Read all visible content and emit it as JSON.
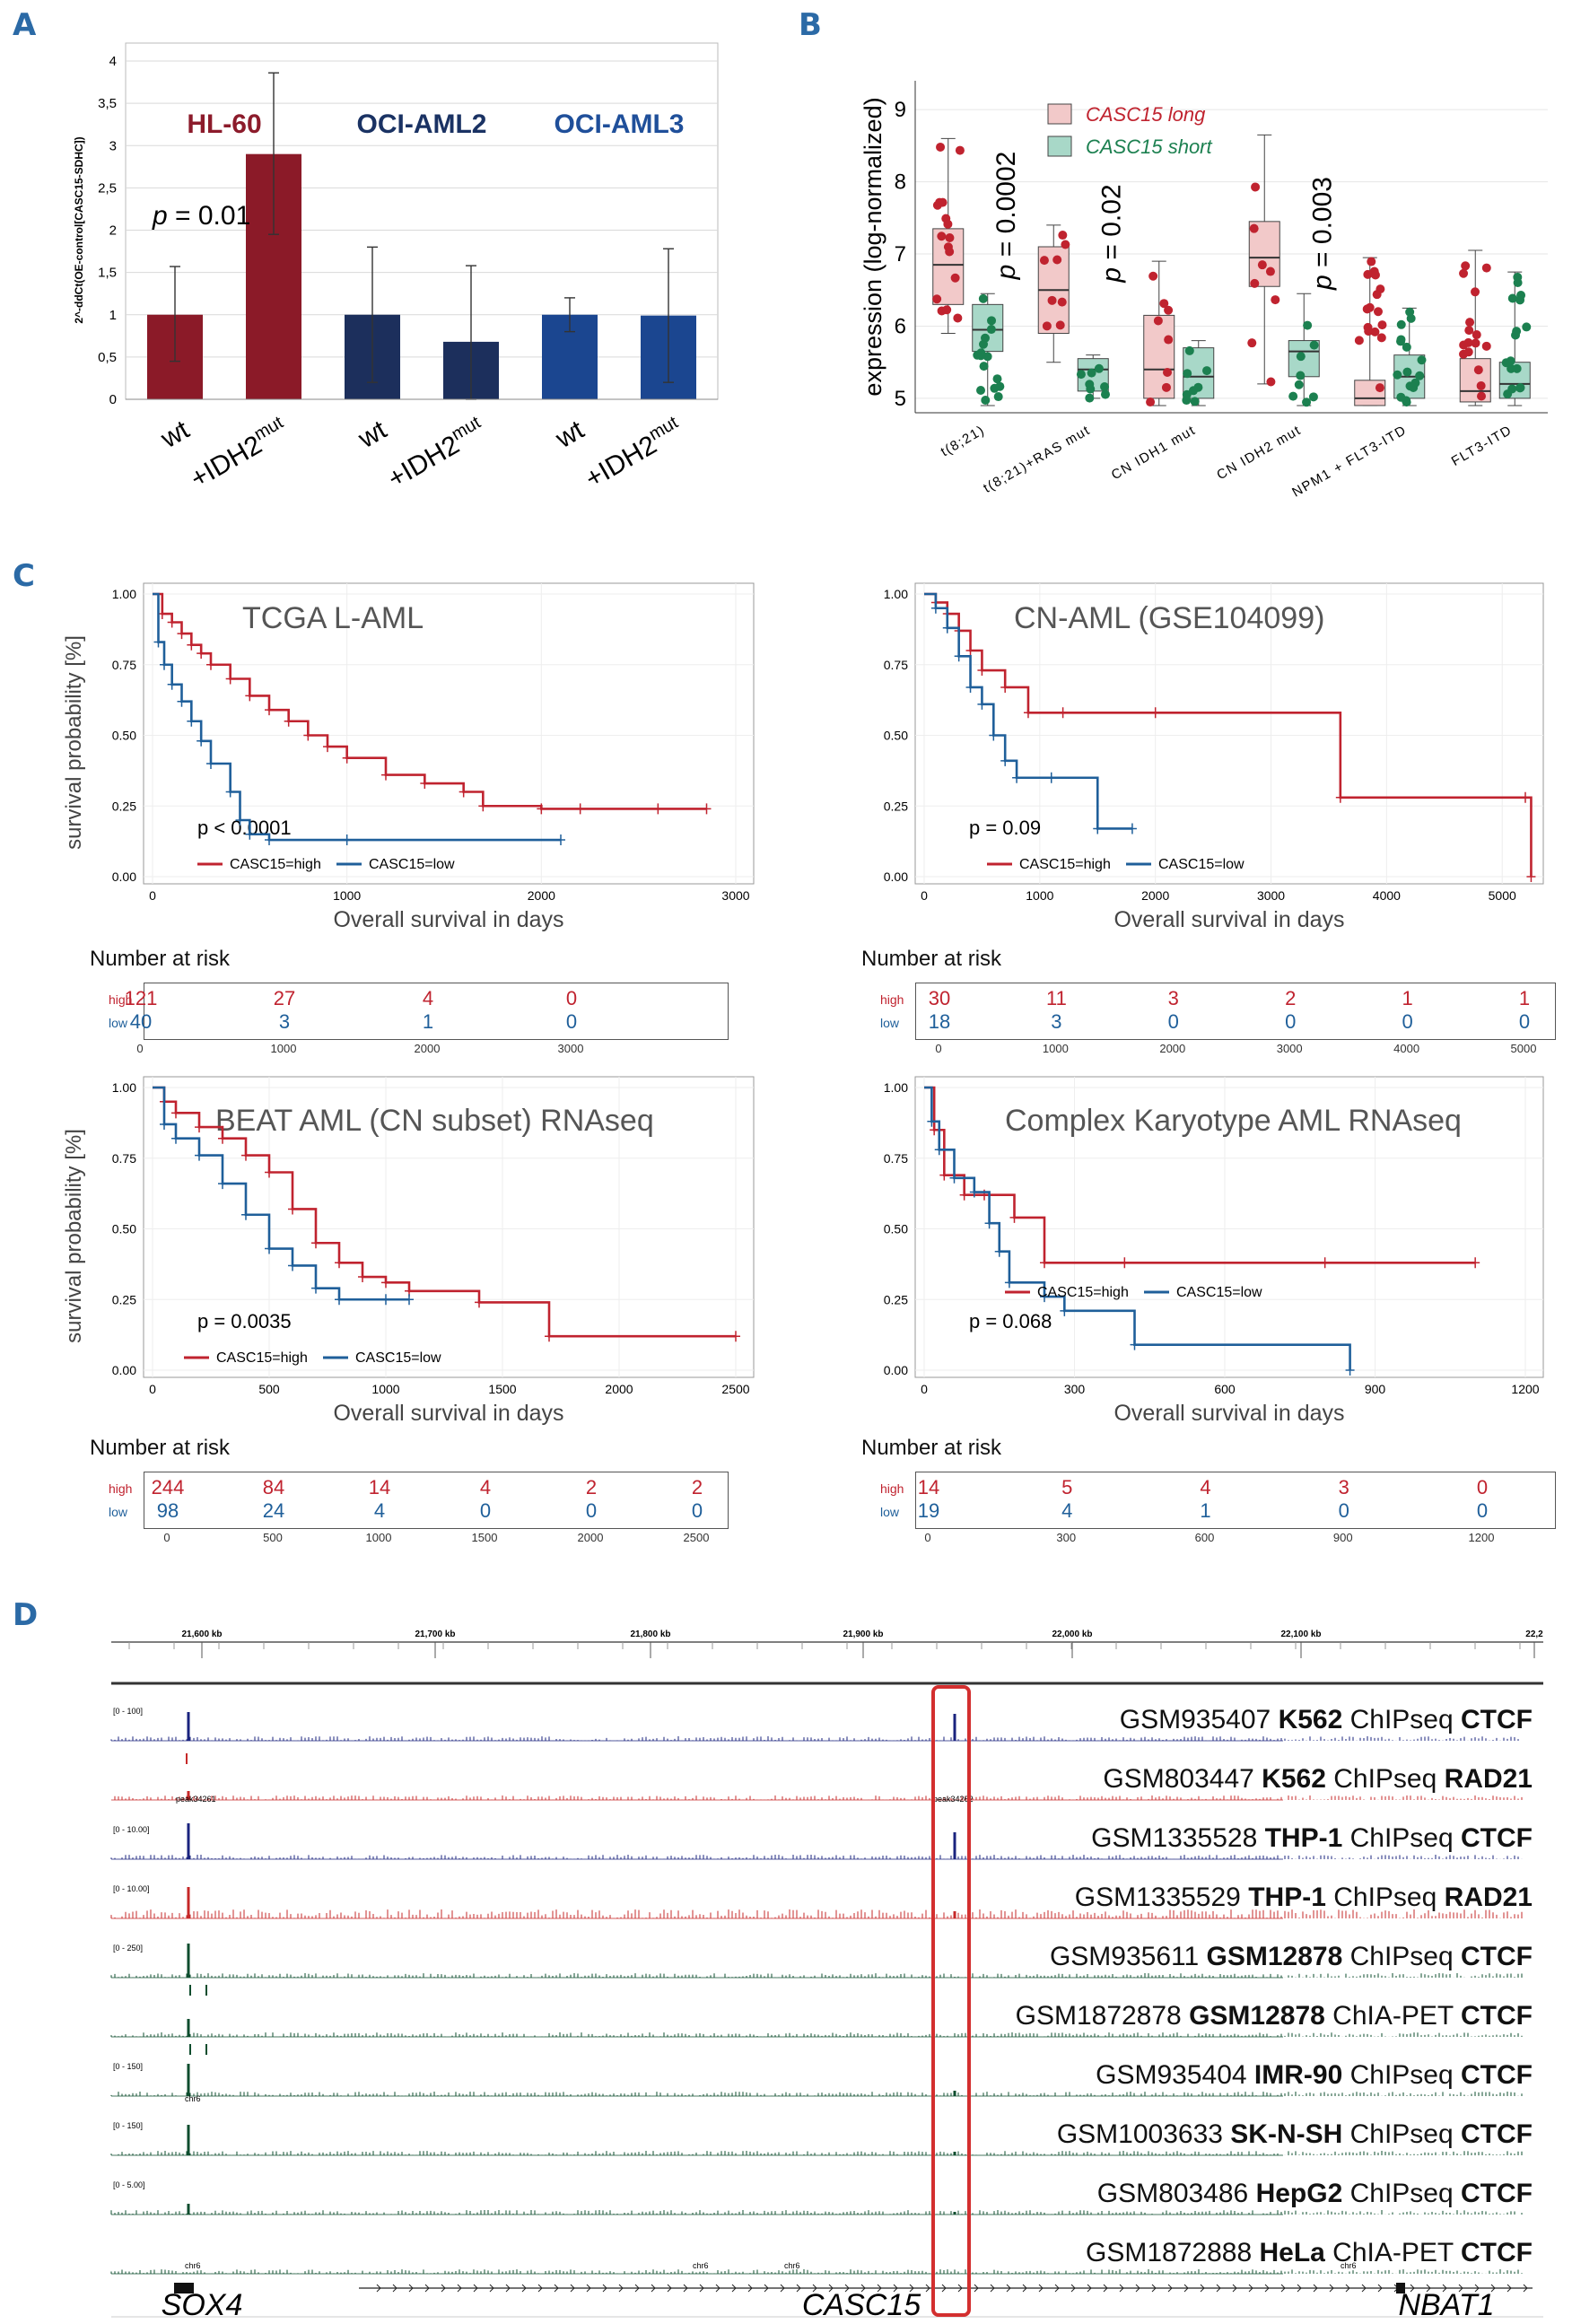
{
  "panels": {
    "A": "A",
    "B": "B",
    "C": "C",
    "D": "D"
  },
  "panelA": {
    "ylabel": "2^-ddCt(OE-control[CASC15-SDHC])",
    "p_text": "p = 0.01",
    "group_labels": [
      "HL-60",
      "OCI-AML2",
      "OCI-AML3"
    ],
    "group_colors": [
      "#8c1b2b",
      "#1a3263",
      "#1f4f9a"
    ],
    "bar_fills": [
      "#8b1a28",
      "#8b1a28",
      "#1c2f5c",
      "#1c2f5c",
      "#1b4690",
      "#1b4690"
    ],
    "categories": [
      "wt",
      "+IDH2mut",
      "wt",
      "+IDH2mut",
      "wt",
      "+IDH2mut"
    ],
    "ticks": [
      "0",
      "0,5",
      "1",
      "1,5",
      "2",
      "2,5",
      "3",
      "3,5",
      "4"
    ]
  },
  "panelB": {
    "ylabel": "expression (log-normalized)",
    "legend": [
      "CASC15 long",
      "CASC15 short"
    ],
    "colors": {
      "long_fill": "#f2c9c9",
      "long_pt": "#c0232f",
      "short_fill": "#a8d8c8",
      "short_pt": "#1c8050"
    },
    "categories": [
      "t(8;21)",
      "t(8;21)+RAS mut",
      "CN IDH1 mut",
      "CN IDH2 mut",
      "NPM1 + FLT3-ITD",
      "FLT3-ITD"
    ],
    "pvals": [
      "p = 0.0002",
      "p = 0.02",
      "",
      "p = 0.003",
      "",
      ""
    ],
    "ticks": [
      "5",
      "6",
      "7",
      "8",
      "9"
    ]
  },
  "panelC": {
    "ylabel": "survival probability [%]",
    "xlabel": "Overall survival in days",
    "risk_title": "Number at risk",
    "risk_labels": [
      "high",
      "low"
    ],
    "colors": {
      "high": "#c0232f",
      "low": "#1f5f9a"
    },
    "plots": [
      {
        "title": "TCGA L-AML",
        "p": "p < 0.0001",
        "legend": [
          "CASC15=high",
          "CASC15=low"
        ],
        "yticks": [
          "0.00",
          "0.25",
          "0.50",
          "0.75",
          "1.00"
        ],
        "xticks": [
          "0",
          "1000",
          "2000",
          "3000"
        ],
        "risk_high": [
          "121",
          "27",
          "4",
          "0"
        ],
        "risk_low": [
          "40",
          "3",
          "1",
          "0"
        ],
        "risk_xticks": [
          "0",
          "1000",
          "2000",
          "3000"
        ]
      },
      {
        "title": "CN-AML (GSE104099)",
        "p": "p = 0.09",
        "legend": [
          "CASC15=high",
          "CASC15=low"
        ],
        "yticks": [
          "0.00",
          "0.25",
          "0.50",
          "0.75",
          "1.00"
        ],
        "xticks": [
          "0",
          "1000",
          "2000",
          "3000",
          "4000",
          "5000"
        ],
        "risk_high": [
          "30",
          "11",
          "3",
          "2",
          "1",
          "1"
        ],
        "risk_low": [
          "18",
          "3",
          "0",
          "0",
          "0",
          "0"
        ],
        "risk_xticks": [
          "0",
          "1000",
          "2000",
          "3000",
          "4000",
          "5000"
        ]
      },
      {
        "title": "BEAT AML (CN subset) RNAseq",
        "p": "p = 0.0035",
        "legend": [
          "CASC15=high",
          "CASC15=low"
        ],
        "yticks": [
          "0.00",
          "0.25",
          "0.50",
          "0.75",
          "1.00"
        ],
        "xticks": [
          "0",
          "500",
          "1000",
          "1500",
          "2000",
          "2500"
        ],
        "risk_high": [
          "244",
          "84",
          "14",
          "4",
          "2",
          "2"
        ],
        "risk_low": [
          "98",
          "24",
          "4",
          "0",
          "0",
          "0"
        ],
        "risk_xticks": [
          "0",
          "500",
          "1000",
          "1500",
          "2000",
          "2500"
        ]
      },
      {
        "title": "Complex Karyotype AML RNAseq",
        "p": "p = 0.068",
        "legend": [
          "CASC15=high",
          "CASC15=low"
        ],
        "yticks": [
          "0.00",
          "0.25",
          "0.50",
          "0.75",
          "1.00"
        ],
        "xticks": [
          "0",
          "300",
          "600",
          "900",
          "1200"
        ],
        "risk_high": [
          "14",
          "5",
          "4",
          "3",
          "0"
        ],
        "risk_low": [
          "19",
          "4",
          "1",
          "0",
          "0"
        ],
        "risk_xticks": [
          "0",
          "300",
          "600",
          "900",
          "1200"
        ]
      }
    ]
  },
  "panelD": {
    "coords": [
      "21,600 kb",
      "21,700 kb",
      "21,800 kb",
      "21,900 kb",
      "22,000 kb",
      "22,100 kb",
      "22,2"
    ],
    "tracks": [
      {
        "pre": "GSM935407 ",
        "cell": "K562",
        "mid": " ChIPseq ",
        "target": "CTCF",
        "range": "[0 - 100]",
        "color": "#1a237e"
      },
      {
        "pre": "GSM803447 ",
        "cell": "K562",
        "mid": " ChIPseq ",
        "target": "RAD21",
        "range": "",
        "color": "#c62828"
      },
      {
        "pre": "GSM1335528 ",
        "cell": "THP-1",
        "mid": " ChIPseq ",
        "target": "CTCF",
        "range": "[0 - 10.00]",
        "color": "#1a237e"
      },
      {
        "pre": "GSM1335529 ",
        "cell": "THP-1",
        "mid": " ChIPseq ",
        "target": "RAD21",
        "range": "[0 - 10.00]",
        "color": "#c62828"
      },
      {
        "pre": "GSM935611 ",
        "cell": "GSM12878",
        "mid": " ChIPseq ",
        "target": "CTCF",
        "range": "[0 - 250]",
        "color": "#0d4d2e"
      },
      {
        "pre": "GSM1872878 ",
        "cell": "GSM12878",
        "mid": " ChIA-PET ",
        "target": "CTCF",
        "range": "",
        "color": "#0d4d2e"
      },
      {
        "pre": "GSM935404 ",
        "cell": "IMR-90",
        "mid": " ChIPseq ",
        "target": "CTCF",
        "range": "[0 - 150]",
        "color": "#0d4d2e"
      },
      {
        "pre": "GSM1003633 ",
        "cell": "SK-N-SH",
        "mid": " ChIPseq ",
        "target": "CTCF",
        "range": "[0 - 150]",
        "color": "#0d4d2e"
      },
      {
        "pre": "GSM803486 ",
        "cell": "HepG2",
        "mid": " ChIPseq ",
        "target": "CTCF",
        "range": "[0 - 5.00]",
        "color": "#0d4d2e"
      },
      {
        "pre": "GSM1872888 ",
        "cell": "HeLa",
        "mid": " ChIA-PET ",
        "target": "CTCF",
        "range": "",
        "color": "#0d4d2e"
      }
    ],
    "peak_labels": [
      "peak34261",
      "peak34262"
    ],
    "chr_labels": [
      "chr6",
      "chr6",
      "chr6",
      "chr6",
      "chr6"
    ],
    "genes": [
      "SOX4",
      "CASC15",
      "NBAT1"
    ]
  },
  "chart_data": [
    {
      "type": "bar",
      "panel": "A",
      "categories": [
        "HL-60 wt",
        "HL-60 +IDH2mut",
        "OCI-AML2 wt",
        "OCI-AML2 +IDH2mut",
        "OCI-AML3 wt",
        "OCI-AML3 +IDH2mut"
      ],
      "values": [
        1.0,
        2.9,
        1.0,
        0.68,
        1.0,
        0.99
      ],
      "error_low": [
        0.45,
        1.95,
        0.2,
        0.0,
        0.8,
        0.2
      ],
      "error_high": [
        1.57,
        3.86,
        1.8,
        1.58,
        1.2,
        1.78
      ],
      "ylim": [
        0,
        4
      ],
      "title": "",
      "xlabel": "",
      "ylabel": "2^-ddCt(OE-control[CASC15-SDHC])"
    },
    {
      "type": "box",
      "panel": "B",
      "categories": [
        "t(8;21)",
        "t(8;21)+RAS mut",
        "CN IDH1 mut",
        "CN IDH2 mut",
        "NPM1 + FLT3-ITD",
        "FLT3-ITD"
      ],
      "series": [
        {
          "name": "CASC15 long",
          "box": [
            [
              5.9,
              6.3,
              6.85,
              7.35,
              8.6
            ],
            [
              5.5,
              5.9,
              6.5,
              7.1,
              7.4
            ],
            [
              4.9,
              5.0,
              5.4,
              6.15,
              6.9
            ],
            [
              5.2,
              6.55,
              6.95,
              7.45,
              8.65
            ],
            [
              4.9,
              4.9,
              5.0,
              5.25,
              6.95
            ],
            [
              4.9,
              4.95,
              5.1,
              5.55,
              7.05
            ]
          ]
        },
        {
          "name": "CASC15 short",
          "box": [
            [
              4.9,
              5.65,
              5.95,
              6.3,
              6.45
            ],
            [
              5.0,
              5.1,
              5.4,
              5.55,
              5.6
            ],
            [
              4.9,
              5.0,
              5.3,
              5.7,
              5.8
            ],
            [
              4.9,
              5.3,
              5.65,
              5.8,
              6.45
            ],
            [
              4.9,
              5.0,
              5.3,
              5.6,
              6.25
            ],
            [
              4.9,
              5.0,
              5.2,
              5.5,
              6.75
            ]
          ]
        }
      ],
      "pvalues": [
        "p = 0.0002",
        "p = 0.02",
        "",
        "p = 0.003",
        "",
        ""
      ],
      "ylim": [
        4.8,
        9.4
      ],
      "ylabel": "expression (log-normalized)"
    },
    {
      "type": "line",
      "panel": "C1",
      "title": "TCGA L-AML",
      "xlim": [
        0,
        3000
      ],
      "ylim": [
        0,
        1
      ],
      "series": [
        {
          "name": "CASC15=high",
          "x": [
            0,
            50,
            100,
            150,
            200,
            250,
            300,
            400,
            500,
            600,
            700,
            800,
            900,
            1000,
            1200,
            1400,
            1600,
            1700,
            2000,
            2200,
            2600,
            2850
          ],
          "y": [
            1.0,
            0.93,
            0.9,
            0.86,
            0.82,
            0.79,
            0.75,
            0.7,
            0.64,
            0.59,
            0.55,
            0.5,
            0.46,
            0.42,
            0.36,
            0.33,
            0.3,
            0.25,
            0.24,
            0.24,
            0.24,
            0.24
          ]
        },
        {
          "name": "CASC15=low",
          "x": [
            0,
            30,
            60,
            100,
            150,
            200,
            250,
            300,
            400,
            450,
            500,
            600,
            1000,
            2100
          ],
          "y": [
            1.0,
            0.83,
            0.75,
            0.68,
            0.62,
            0.55,
            0.48,
            0.4,
            0.3,
            0.2,
            0.15,
            0.13,
            0.13,
            0.13
          ]
        }
      ]
    },
    {
      "type": "line",
      "panel": "C2",
      "title": "CN-AML (GSE104099)",
      "xlim": [
        0,
        5200
      ],
      "ylim": [
        0,
        1
      ],
      "series": [
        {
          "name": "CASC15=high",
          "x": [
            0,
            100,
            200,
            300,
            400,
            500,
            700,
            900,
            1200,
            2000,
            3600,
            5200,
            5250
          ],
          "y": [
            1.0,
            0.97,
            0.93,
            0.87,
            0.8,
            0.73,
            0.67,
            0.58,
            0.58,
            0.58,
            0.28,
            0.28,
            0.0
          ]
        },
        {
          "name": "CASC15=low",
          "x": [
            0,
            100,
            200,
            300,
            400,
            500,
            600,
            700,
            800,
            1100,
            1500,
            1800
          ],
          "y": [
            1.0,
            0.95,
            0.88,
            0.78,
            0.67,
            0.61,
            0.5,
            0.41,
            0.35,
            0.35,
            0.17,
            0.17
          ]
        }
      ]
    },
    {
      "type": "line",
      "panel": "C3",
      "title": "BEAT AML (CN subset) RNAseq",
      "xlim": [
        0,
        2500
      ],
      "ylim": [
        0,
        1
      ],
      "series": [
        {
          "name": "CASC15=high",
          "x": [
            0,
            50,
            100,
            200,
            300,
            400,
            500,
            600,
            700,
            800,
            900,
            1000,
            1100,
            1400,
            1700,
            2500
          ],
          "y": [
            1.0,
            0.95,
            0.91,
            0.86,
            0.82,
            0.76,
            0.7,
            0.57,
            0.45,
            0.38,
            0.33,
            0.31,
            0.28,
            0.24,
            0.12,
            0.12
          ]
        },
        {
          "name": "CASC15=low",
          "x": [
            0,
            50,
            100,
            200,
            300,
            400,
            500,
            600,
            700,
            800,
            1000,
            1100
          ],
          "y": [
            1.0,
            0.87,
            0.82,
            0.76,
            0.66,
            0.55,
            0.43,
            0.37,
            0.29,
            0.25,
            0.25,
            0.25
          ]
        }
      ]
    },
    {
      "type": "line",
      "panel": "C4",
      "title": "Complex Karyotype AML RNAseq",
      "xlim": [
        0,
        1200
      ],
      "ylim": [
        0,
        1
      ],
      "series": [
        {
          "name": "CASC15=high",
          "x": [
            0,
            20,
            40,
            80,
            120,
            180,
            240,
            400,
            800,
            1100
          ],
          "y": [
            1.0,
            0.85,
            0.69,
            0.62,
            0.62,
            0.54,
            0.38,
            0.38,
            0.38,
            0.38
          ]
        },
        {
          "name": "CASC15=low",
          "x": [
            0,
            15,
            30,
            60,
            100,
            130,
            150,
            170,
            240,
            280,
            420,
            850
          ],
          "y": [
            1.0,
            0.88,
            0.78,
            0.68,
            0.63,
            0.52,
            0.42,
            0.31,
            0.26,
            0.21,
            0.09,
            0.0
          ]
        }
      ]
    }
  ]
}
